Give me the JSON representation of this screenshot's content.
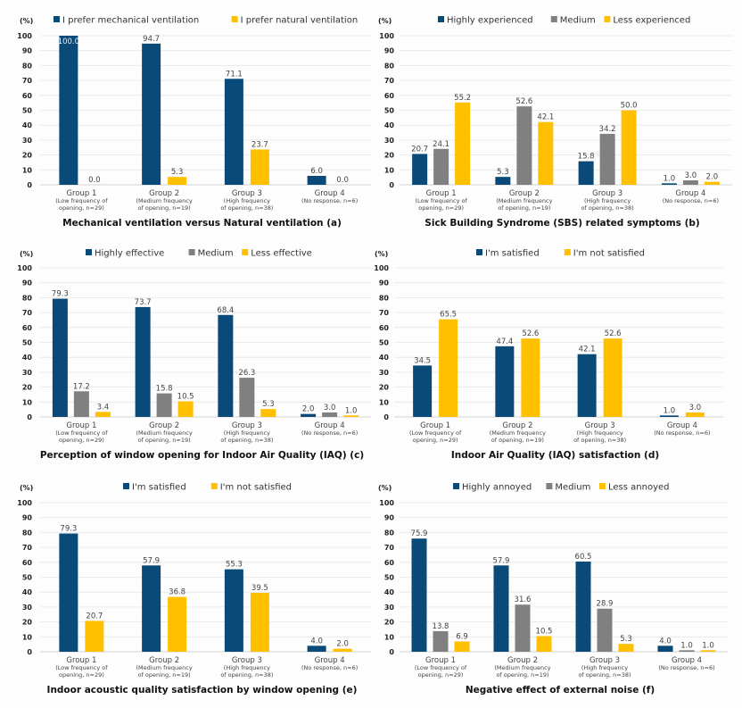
{
  "colors": {
    "navy": "#0a4a79",
    "gray": "#808080",
    "yellow": "#ffc000"
  },
  "chart_data": [
    {
      "id": "a",
      "type": "bar",
      "title": "Mechanical ventilation versus Natural ventilation (a)",
      "ylabel": "(%)",
      "ylim": [
        0,
        100
      ],
      "yticks": [
        0,
        10,
        20,
        30,
        40,
        50,
        60,
        70,
        80,
        90,
        100
      ],
      "grid": true,
      "legend_position": "top",
      "categories": [
        {
          "name": "Group 1",
          "sub": [
            "(Low frequency of",
            "opening, n=29)"
          ]
        },
        {
          "name": "Group 2",
          "sub": [
            "(Medium frequency",
            "of opening, n=19)"
          ]
        },
        {
          "name": "Group 3",
          "sub": [
            "(High frequency",
            "of opening, n=38)"
          ]
        },
        {
          "name": "Group 4",
          "sub": [
            "(No response, n=6)"
          ]
        }
      ],
      "series": [
        {
          "name": "I prefer mechanical ventilation",
          "color": "navy",
          "values": [
            100.0,
            94.7,
            71.1,
            6.0
          ],
          "labels": [
            "100.0",
            "94.7",
            "71.1",
            "6.0"
          ]
        },
        {
          "name": "I prefer natural ventilation",
          "color": "yellow",
          "values": [
            0.0,
            5.3,
            23.7,
            0.0
          ],
          "labels": [
            "0.0",
            "5.3",
            "23.7",
            "0.0"
          ]
        }
      ]
    },
    {
      "id": "b",
      "type": "bar",
      "title": "Sick Building Syndrome (SBS) related symptoms (b)",
      "ylabel": "(%)",
      "ylim": [
        0,
        100
      ],
      "yticks": [
        0,
        10,
        20,
        30,
        40,
        50,
        60,
        70,
        80,
        90,
        100
      ],
      "grid": true,
      "legend_position": "top",
      "categories": [
        {
          "name": "Group 1",
          "sub": [
            "(Low frequency of",
            "opening, n=29)"
          ]
        },
        {
          "name": "Group 2",
          "sub": [
            "(Medium frequency",
            "of opening, n=19)"
          ]
        },
        {
          "name": "Group 3",
          "sub": [
            "(High frequency",
            "of opening, n=38)"
          ]
        },
        {
          "name": "Group 4",
          "sub": [
            "(No response, n=6)"
          ]
        }
      ],
      "series": [
        {
          "name": "Highly experienced",
          "color": "navy",
          "values": [
            20.7,
            5.3,
            15.8,
            1.0
          ],
          "labels": [
            "20.7",
            "5.3",
            "15.8",
            "1.0"
          ]
        },
        {
          "name": "Medium",
          "color": "gray",
          "values": [
            24.1,
            52.6,
            34.2,
            3.0
          ],
          "labels": [
            "24.1",
            "52.6",
            "34.2",
            "3.0"
          ]
        },
        {
          "name": "Less experienced",
          "color": "yellow",
          "values": [
            55.2,
            42.1,
            50.0,
            2.0
          ],
          "labels": [
            "55.2",
            "42.1",
            "50.0",
            "2.0"
          ]
        }
      ]
    },
    {
      "id": "c",
      "type": "bar",
      "title": "Perception of window opening for Indoor Air Quality (IAQ) (c)",
      "ylabel": "(%)",
      "ylim": [
        0,
        100
      ],
      "yticks": [
        0,
        10,
        20,
        30,
        40,
        50,
        60,
        70,
        80,
        90,
        100
      ],
      "grid": true,
      "legend_position": "top",
      "categories": [
        {
          "name": "Group 1",
          "sub": [
            "(Low frequency of",
            "opening, n=29)"
          ]
        },
        {
          "name": "Group 2",
          "sub": [
            "(Medium frequency",
            "of opening, n=19)"
          ]
        },
        {
          "name": "Group 3",
          "sub": [
            "(High frequency",
            "of opening, n=38)"
          ]
        },
        {
          "name": "Group 4",
          "sub": [
            "(No response, n=6)"
          ]
        }
      ],
      "series": [
        {
          "name": "Highly effective",
          "color": "navy",
          "values": [
            79.3,
            73.7,
            68.4,
            2.0
          ],
          "labels": [
            "79.3",
            "73.7",
            "68.4",
            "2.0"
          ]
        },
        {
          "name": "Medium",
          "color": "gray",
          "values": [
            17.2,
            15.8,
            26.3,
            3.0
          ],
          "labels": [
            "17.2",
            "15.8",
            "26.3",
            "3.0"
          ]
        },
        {
          "name": "Less effective",
          "color": "yellow",
          "values": [
            3.4,
            10.5,
            5.3,
            1.0
          ],
          "labels": [
            "3.4",
            "10.5",
            "5.3",
            "1.0"
          ]
        }
      ]
    },
    {
      "id": "d",
      "type": "bar",
      "title": "Indoor Air Quality (IAQ) satisfaction (d)",
      "ylabel": "(%)",
      "ylim": [
        0,
        100
      ],
      "yticks": [
        0,
        10,
        20,
        30,
        40,
        50,
        60,
        70,
        80,
        90,
        100
      ],
      "grid": true,
      "legend_position": "top",
      "categories": [
        {
          "name": "Group 1",
          "sub": [
            "(Low frequency of",
            "opening, n=29)"
          ]
        },
        {
          "name": "Group 2",
          "sub": [
            "(Medium frequency",
            "of opening, n=19)"
          ]
        },
        {
          "name": "Group 3",
          "sub": [
            "(High frequency",
            "of opening, n=38)"
          ]
        },
        {
          "name": "Group 4",
          "sub": [
            "(No response, n=6)"
          ]
        }
      ],
      "series": [
        {
          "name": "I'm satisfied",
          "color": "navy",
          "values": [
            34.5,
            47.4,
            42.1,
            1.0
          ],
          "labels": [
            "34.5",
            "47.4",
            "42.1",
            "1.0"
          ]
        },
        {
          "name": "I'm not satisfied",
          "color": "yellow",
          "values": [
            65.5,
            52.6,
            52.6,
            3.0
          ],
          "labels": [
            "65.5",
            "52.6",
            "52.6",
            "3.0"
          ]
        }
      ]
    },
    {
      "id": "e",
      "type": "bar",
      "title": "Indoor acoustic quality satisfaction by window opening (e)",
      "ylabel": "(%)",
      "ylim": [
        0,
        100
      ],
      "yticks": [
        0,
        10,
        20,
        30,
        40,
        50,
        60,
        70,
        80,
        90,
        100
      ],
      "grid": true,
      "legend_position": "top",
      "categories": [
        {
          "name": "Group 1",
          "sub": [
            "(Low frequency of",
            "opening, n=29)"
          ]
        },
        {
          "name": "Group 2",
          "sub": [
            "(Medium frequency",
            "of opening, n=19)"
          ]
        },
        {
          "name": "Group 3",
          "sub": [
            "(High frequency",
            "of opening, n=38)"
          ]
        },
        {
          "name": "Group 4",
          "sub": [
            "(No response, n=6)"
          ]
        }
      ],
      "series": [
        {
          "name": "I'm satisfied",
          "color": "navy",
          "values": [
            79.3,
            57.9,
            55.3,
            4.0
          ],
          "labels": [
            "79.3",
            "57.9",
            "55.3",
            "4.0"
          ]
        },
        {
          "name": "I'm not satisfied",
          "color": "yellow",
          "values": [
            20.7,
            36.8,
            39.5,
            2.0
          ],
          "labels": [
            "20.7",
            "36.8",
            "39.5",
            "2.0"
          ]
        }
      ]
    },
    {
      "id": "f",
      "type": "bar",
      "title": "Negative effect of external noise (f)",
      "ylabel": "(%)",
      "ylim": [
        0,
        100
      ],
      "yticks": [
        0,
        10,
        20,
        30,
        40,
        50,
        60,
        70,
        80,
        90,
        100
      ],
      "grid": true,
      "legend_position": "top",
      "categories": [
        {
          "name": "Group 1",
          "sub": [
            "(Low frequency of",
            "opening, n=29)"
          ]
        },
        {
          "name": "Group 2",
          "sub": [
            "(Medium frequency",
            "of opening, n=19)"
          ]
        },
        {
          "name": "Group 3",
          "sub": [
            "(High frequency",
            "of opening, n=38)"
          ]
        },
        {
          "name": "Group 4",
          "sub": [
            "(No response, n=6)"
          ]
        }
      ],
      "series": [
        {
          "name": "Highly annoyed",
          "color": "navy",
          "values": [
            75.9,
            57.9,
            60.5,
            4.0
          ],
          "labels": [
            "75.9",
            "57.9",
            "60.5",
            "4.0"
          ]
        },
        {
          "name": "Medium",
          "color": "gray",
          "values": [
            13.8,
            31.6,
            28.9,
            1.0
          ],
          "labels": [
            "13.8",
            "31.6",
            "28.9",
            "1.0"
          ]
        },
        {
          "name": "Less annoyed",
          "color": "yellow",
          "values": [
            6.9,
            10.5,
            5.3,
            1.0
          ],
          "labels": [
            "6.9",
            "10.5",
            "5.3",
            "1.0"
          ]
        }
      ]
    }
  ]
}
